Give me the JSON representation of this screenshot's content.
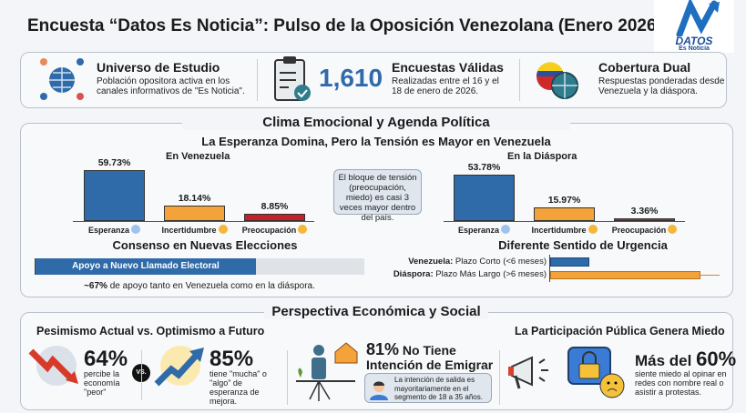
{
  "header": {
    "title": "Encuesta “Datos Es Noticia”: Pulso de la Oposición Venezolana (Enero 2026)",
    "logo": {
      "name": "DATOS",
      "tagline": "Es Noticia"
    }
  },
  "summary": [
    {
      "icon": "people-globe-icon",
      "title": "Universo de Estudio",
      "text": "Población opositora activa en los canales informativos de \"Es Noticia\"."
    },
    {
      "icon": "clipboard-check-icon",
      "big": "1,610",
      "title": "Encuestas Válidas",
      "text": "Realizadas entre el 16 y el 18 de enero de 2026."
    },
    {
      "icon": "venezuela-globe-icon",
      "title": "Cobertura Dual",
      "text": "Respuestas ponderadas desde Venezuela y la diáspora."
    }
  ],
  "clima": {
    "title": "Clima Emocional y Agenda Política",
    "subtitle": "La Esperanza Domina, Pero la Tensión es Mayor en Venezuela",
    "callout": "El bloque de tensión (preocupación, miedo) es casi 3 veces mayor dentro del país.",
    "consenso_title": "Consenso en Nuevas Elecciones",
    "consenso_bar_label": "Apoyo a Nuevo Llamado Electoral",
    "consenso_note_bold": "~67%",
    "consenso_note": " de apoyo tanto en Venezuela como en la diáspora.",
    "urgencia_title": "Diferente Sentido de Urgencia",
    "urgencia_rows": [
      {
        "bold": "Venezuela:",
        "text": " Plazo Corto (<6 meses)"
      },
      {
        "bold": "Diáspora:",
        "text": " Plazo Más Largo (>6 meses)"
      }
    ]
  },
  "chart_data": [
    {
      "type": "bar",
      "title": "En Venezuela",
      "categories": [
        "Esperanza",
        "Incertidumbre",
        "Preocupación"
      ],
      "values": [
        59.73,
        18.14,
        8.85
      ],
      "labels": [
        "59.73%",
        "18.14%",
        "8.85%"
      ],
      "colors": [
        "#2f6aa9",
        "#f4a23a",
        "#c3202a"
      ]
    },
    {
      "type": "bar",
      "title": "En la Diáspora",
      "categories": [
        "Esperanza",
        "Incertidumbre",
        "Preocupación"
      ],
      "values": [
        53.78,
        15.97,
        3.36
      ],
      "labels": [
        "53.78%",
        "15.97%",
        "3.36%"
      ],
      "colors": [
        "#2f6aa9",
        "#f4a23a",
        "#c3202a"
      ]
    },
    {
      "type": "bar",
      "orientation": "horizontal",
      "title": "Consenso en Nuevas Elecciones",
      "categories": [
        "Apoyo a Nuevo Llamado Electoral"
      ],
      "values": [
        67
      ],
      "xlim": [
        0,
        100
      ]
    },
    {
      "type": "bar",
      "orientation": "horizontal",
      "title": "Diferente Sentido de Urgencia",
      "categories": [
        "Venezuela",
        "Diáspora"
      ],
      "relative_values": [
        0.22,
        0.85
      ],
      "colors": [
        "#2f6aa9",
        "#f4a23a"
      ]
    }
  ],
  "economia": {
    "title": "Perspectiva Económica y Social",
    "pesimismo_title": "Pesimismo Actual vs. Optimismo a Futuro",
    "pes_pct": "64%",
    "pes_text": "percibe la economía \"peor\"",
    "vs": "VS.",
    "opt_pct": "85%",
    "opt_text": "tiene \"mucha\" o \"algo\" de esperanza de mejora.",
    "emig_pct": "81%",
    "emig_title1": " No Tiene",
    "emig_title2": "Intención de Emigrar",
    "emig_note": "La intención de salida es mayoritariamente en el segmento de 18 a 35 años.",
    "miedo_title": "La Participación Pública Genera Miedo",
    "miedo_pre": "Más del ",
    "miedo_pct": "60%",
    "miedo_text": "siente miedo al opinar en redes con nombre real o asistir a protestas."
  }
}
